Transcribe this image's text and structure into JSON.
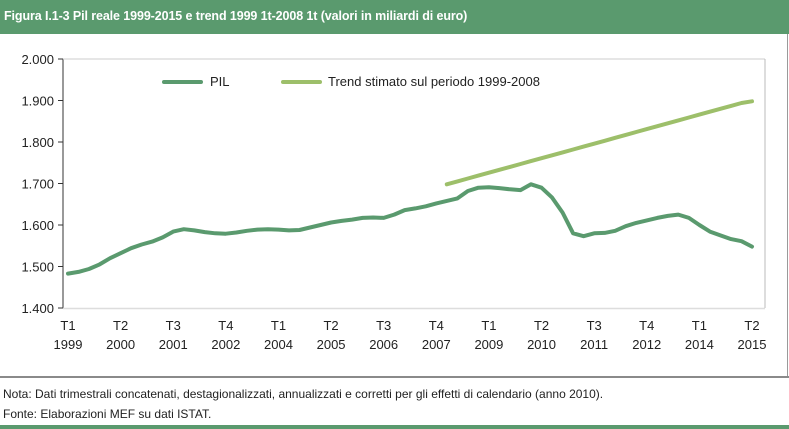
{
  "header": {
    "title": "Figura I.1-3 Pil reale 1999-2015 e trend 1999 1t-2008 1t (valori in miliardi di euro)"
  },
  "colors": {
    "header_bg": "#5a9a6e",
    "pil_line": "#5a9a6e",
    "trend_line": "#9dbf6a"
  },
  "chart_data": {
    "type": "line",
    "title": "Pil reale 1999-2015 e trend 1999 1t-2008 1t (valori in miliardi di euro)",
    "xlabel": "",
    "ylabel": "",
    "ylim": [
      1400,
      2000
    ],
    "yticks": [
      "2.000",
      "1.900",
      "1.800",
      "1.700",
      "1.600",
      "1.500",
      "1.400"
    ],
    "ytick_values": [
      2000,
      1900,
      1800,
      1700,
      1600,
      1500,
      1400
    ],
    "xticks": [
      {
        "q": "T1",
        "y": "1999",
        "index": 0
      },
      {
        "q": "T2",
        "y": "2000",
        "index": 5
      },
      {
        "q": "T3",
        "y": "2001",
        "index": 10
      },
      {
        "q": "T4",
        "y": "2002",
        "index": 15
      },
      {
        "q": "T1",
        "y": "2004",
        "index": 20
      },
      {
        "q": "T2",
        "y": "2005",
        "index": 25
      },
      {
        "q": "T3",
        "y": "2006",
        "index": 30
      },
      {
        "q": "T4",
        "y": "2007",
        "index": 35
      },
      {
        "q": "T1",
        "y": "2009",
        "index": 40
      },
      {
        "q": "T2",
        "y": "2010",
        "index": 45
      },
      {
        "q": "T3",
        "y": "2011",
        "index": 50
      },
      {
        "q": "T4",
        "y": "2012",
        "index": 55
      },
      {
        "q": "T1",
        "y": "2014",
        "index": 60
      },
      {
        "q": "T2",
        "y": "2015",
        "index": 65
      }
    ],
    "grid": false,
    "legend": {
      "position": "top-center",
      "entries": [
        "PIL",
        "Trend stimato sul periodo 1999-2008"
      ]
    },
    "n_points": 66,
    "series": [
      {
        "name": "PIL",
        "start_index": 0,
        "values": [
          1483,
          1487,
          1494,
          1505,
          1520,
          1532,
          1544,
          1553,
          1560,
          1570,
          1584,
          1590,
          1587,
          1583,
          1580,
          1579,
          1582,
          1586,
          1589,
          1590,
          1589,
          1587,
          1588,
          1594,
          1600,
          1606,
          1610,
          1613,
          1617,
          1618,
          1617,
          1625,
          1636,
          1640,
          1645,
          1652,
          1658,
          1664,
          1682,
          1690,
          1691,
          1689,
          1686,
          1684,
          1698,
          1690,
          1666,
          1630,
          1580,
          1573,
          1580,
          1581,
          1586,
          1597,
          1605,
          1611,
          1617,
          1622,
          1625,
          1617,
          1600,
          1584,
          1575,
          1566,
          1561,
          1548
        ]
      },
      {
        "name": "Trend stimato sul periodo 1999-2008",
        "start_index": 36,
        "values": [
          1698,
          1705,
          1712,
          1719,
          1726,
          1733,
          1740,
          1747,
          1754,
          1761,
          1768,
          1775,
          1782,
          1789,
          1796,
          1803,
          1810,
          1817,
          1824,
          1831,
          1838,
          1845,
          1852,
          1859,
          1866,
          1873,
          1880,
          1887,
          1894,
          1898
        ]
      }
    ]
  },
  "notes": {
    "nota": "Nota: Dati trimestrali concatenati, destagionalizzati, annualizzati e corretti per gli effetti di calendario (anno 2010).",
    "fonte": "Fonte: Elaborazioni MEF su dati ISTAT."
  }
}
